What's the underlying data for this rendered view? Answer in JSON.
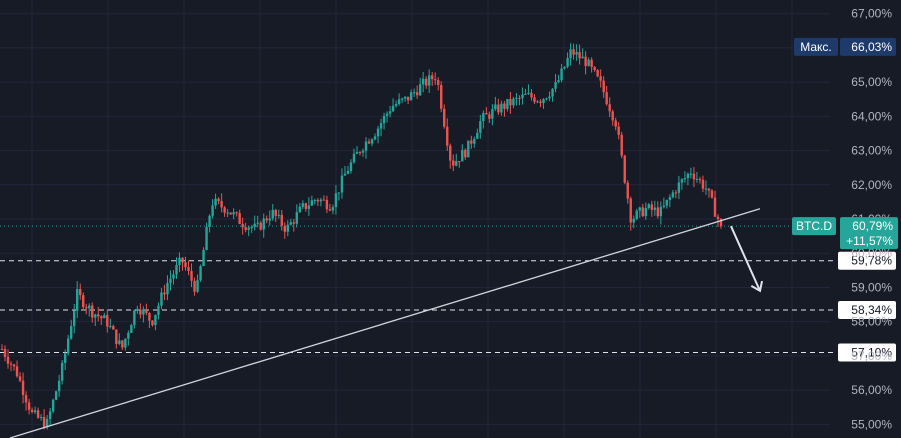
{
  "chart_data": {
    "type": "candlestick",
    "symbol": "BTC.D",
    "unit": "%",
    "ylim": [
      54.6,
      67.4
    ],
    "y_ticks": [
      "55,00%",
      "56,00%",
      "57,00%",
      "58,00%",
      "59,00%",
      "60,00%",
      "61,00%",
      "62,00%",
      "63,00%",
      "64,00%",
      "65,00%",
      "66,00%",
      "67,00%"
    ],
    "y_tick_values": [
      55,
      56,
      57,
      58,
      59,
      60,
      61,
      62,
      63,
      64,
      65,
      66,
      67
    ],
    "grid": true,
    "price_path": [
      57.2,
      56.5,
      55.3,
      55.0,
      56.6,
      58.8,
      58.3,
      58.0,
      57.2,
      58.5,
      58.0,
      59.1,
      59.8,
      58.9,
      61.5,
      61.3,
      60.9,
      60.7,
      61.2,
      60.7,
      61.3,
      61.6,
      61.4,
      62.4,
      63.1,
      63.6,
      64.3,
      64.5,
      64.9,
      65.2,
      62.6,
      63.0,
      63.9,
      64.2,
      64.4,
      64.6,
      64.5,
      64.9,
      65.9,
      65.6,
      64.9,
      63.8,
      61.0,
      61.3,
      61.2,
      61.9,
      62.4,
      61.9,
      60.79
    ],
    "levels": [
      {
        "label": "59,78%",
        "value": 59.78
      },
      {
        "label": "58,34%",
        "value": 58.34
      },
      {
        "label": "57,10%",
        "value": 57.1
      }
    ],
    "trendline": {
      "start": 54.6,
      "end": 61.3
    },
    "arrow": {
      "from": 60.79,
      "to": 58.9
    },
    "max_badge": {
      "label": "Макс.",
      "value_text": "66,03%",
      "value": 66.03
    },
    "current_badge": {
      "symbol": "BTC.D",
      "price_text": "60,79%",
      "change_text": "+11,57%",
      "value": 60.79
    }
  },
  "colors": {
    "background": "#171b26",
    "up": "#26a69a",
    "down": "#ef5350",
    "grid": "#22263a",
    "level_line": "#e0e3eb",
    "trendline": "#d1d4dc",
    "arrow": "#e0e3eb",
    "badge_current": "#26a69a",
    "badge_max": "#1e3a6b",
    "current_price_line": "#26a69a"
  }
}
